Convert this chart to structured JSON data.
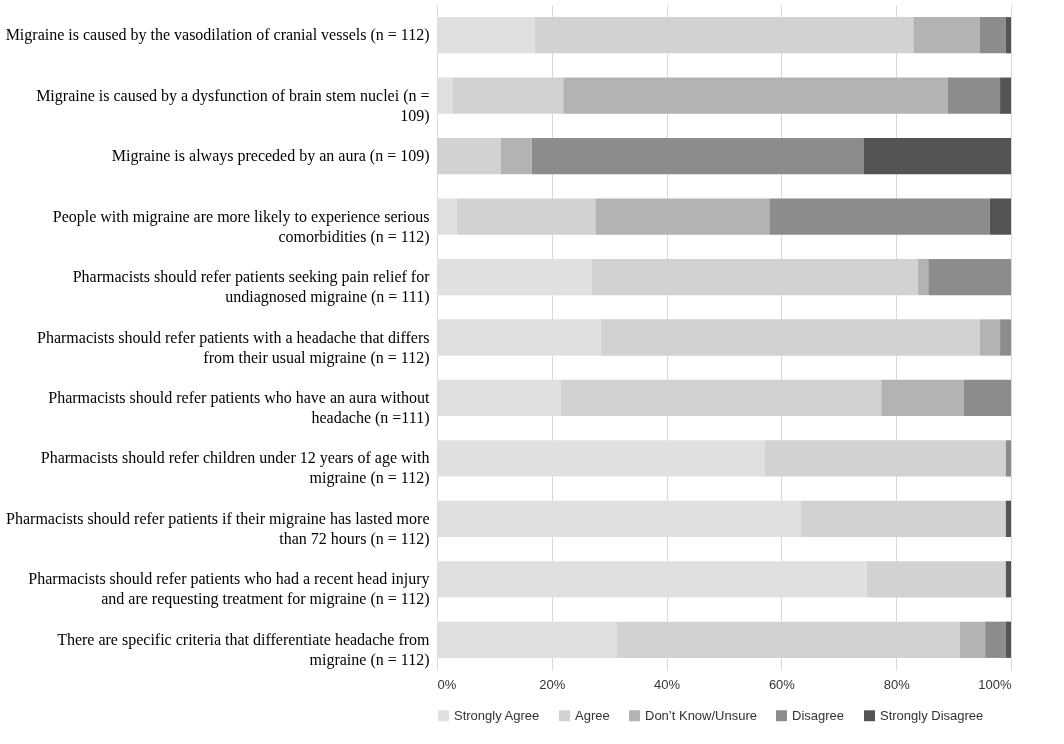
{
  "chart_data": {
    "type": "bar",
    "orientation": "horizontal",
    "stacked": true,
    "categories": [
      "Migraine is caused by the vasodilation of cranial vessels (n = 112)",
      "Migraine is caused by a dysfunction of brain stem nuclei (n = 109)",
      "Migraine is always preceded by an aura (n = 109)",
      "People with migraine are more likely to experience serious comorbidities (n = 112)",
      "Pharmacists should refer patients seeking pain relief for undiagnosed migraine (n = 111)",
      "Pharmacists should refer patients with a headache that differs from their usual migraine (n = 112)",
      "Pharmacists should refer patients who have an aura without headache (n =111)",
      "Pharmacists should refer children under 12 years of age with migraine (n = 112)",
      "Pharmacists should refer patients if their migraine has lasted more than 72 hours (n = 112)",
      "Pharmacists should refer patients who had a recent head injury and are requesting treatment for migraine (n = 112)",
      "There are specific criteria that differentiate headache from migraine (n = 112)"
    ],
    "series": [
      {
        "name": "Strongly Agree",
        "color": "#e0e0e0",
        "values": [
          17.0,
          2.7,
          0,
          3.5,
          27.0,
          28.6,
          21.6,
          57.1,
          63.4,
          74.9,
          31.3
        ]
      },
      {
        "name": "Agree",
        "color": "#d2d2d2",
        "values": [
          66.0,
          19.3,
          11.1,
          24.1,
          56.8,
          66.0,
          55.8,
          42.0,
          35.7,
          24.2,
          59.8
        ]
      },
      {
        "name": "Don’t Know/Unsure",
        "color": "#b3b3b3",
        "values": [
          11.6,
          67.0,
          5.4,
          30.3,
          1.8,
          3.5,
          14.4,
          0,
          0,
          0,
          4.4
        ]
      },
      {
        "name": "Disagree",
        "color": "#8c8c8c",
        "values": [
          4.5,
          9.1,
          57.8,
          38.4,
          14.4,
          1.9,
          8.2,
          0.9,
          0,
          0,
          3.6
        ]
      },
      {
        "name": "Strongly Disagree",
        "color": "#545454",
        "values": [
          0.9,
          1.9,
          25.7,
          3.7,
          0,
          0,
          0,
          0,
          0.9,
          0.9,
          0.9
        ]
      }
    ],
    "xlim": [
      0,
      100
    ],
    "xticks": [
      {
        "value": 0,
        "label": "0%"
      },
      {
        "value": 20,
        "label": "20%"
      },
      {
        "value": 40,
        "label": "40%"
      },
      {
        "value": 60,
        "label": "60%"
      },
      {
        "value": 80,
        "label": "80%"
      },
      {
        "value": 100,
        "label": "100%"
      }
    ],
    "grid": "x",
    "legend": "bottom"
  }
}
